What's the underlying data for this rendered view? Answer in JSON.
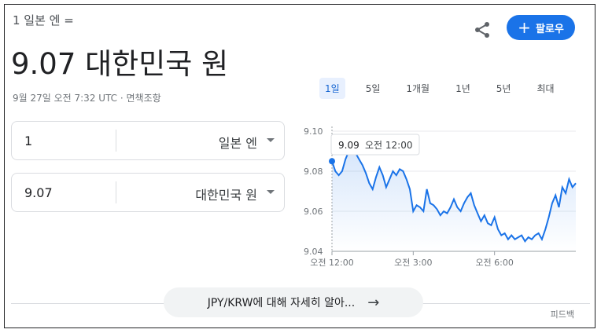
{
  "header": {
    "subtitle": "1 일본 엔 =",
    "result": "9.07 대한민국 원",
    "timestamp": "9월 27일 오전 7:32 UTC · 면책조항",
    "follow_label": "팔로우"
  },
  "converter": {
    "from": {
      "amount": "1",
      "currency": "일본 엔"
    },
    "to": {
      "amount": "9.07",
      "currency": "대한민국 원"
    }
  },
  "range_tabs": [
    {
      "label": "1일",
      "active": true
    },
    {
      "label": "5일"
    },
    {
      "label": "1개월"
    },
    {
      "label": "1년"
    },
    {
      "label": "5년"
    },
    {
      "label": "최대"
    }
  ],
  "tooltip": {
    "value": "9.09",
    "time": "오전 12:00"
  },
  "chart_data": {
    "type": "line",
    "y_ticks": [
      "9.10",
      "9.08",
      "9.06",
      "9.04"
    ],
    "x_ticks": [
      "오전 12:00",
      "오전 3:00",
      "오전 6:00"
    ],
    "ylim": [
      9.04,
      9.1
    ],
    "line_color": "#1a73e8",
    "series": [
      {
        "values": [
          9.085,
          9.08,
          9.078,
          9.08,
          9.086,
          9.09,
          9.092,
          9.089,
          9.086,
          9.083,
          9.079,
          9.074,
          9.071,
          9.077,
          9.082,
          9.078,
          9.072,
          9.076,
          9.08,
          9.078,
          9.081,
          9.08,
          9.076,
          9.071,
          9.06,
          9.063,
          9.062,
          9.06,
          9.071,
          9.064,
          9.063,
          9.061,
          9.058,
          9.06,
          9.059,
          9.062,
          9.066,
          9.062,
          9.06,
          9.064,
          9.067,
          9.069,
          9.063,
          9.059,
          9.055,
          9.058,
          9.054,
          9.053,
          9.057,
          9.051,
          9.048,
          9.049,
          9.046,
          9.048,
          9.046,
          9.047,
          9.048,
          9.045,
          9.047,
          9.046,
          9.048,
          9.049,
          9.046,
          9.051,
          9.057,
          9.064,
          9.068,
          9.062,
          9.072,
          9.069,
          9.076,
          9.072,
          9.074
        ]
      }
    ]
  },
  "footer": {
    "more_label": "JPY/KRW에 대해 자세히 알아...",
    "feedback": "피드백"
  }
}
